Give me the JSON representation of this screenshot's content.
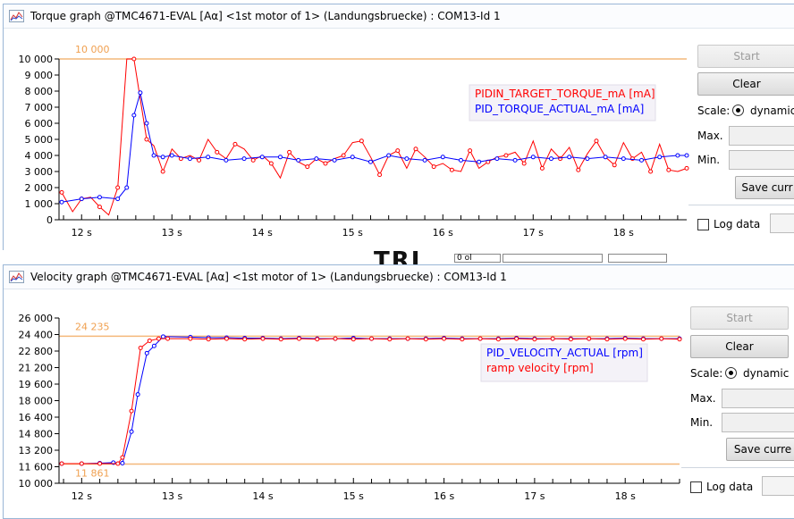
{
  "background": {
    "partial_label": "TRI",
    "partial_field": "0 ol"
  },
  "windows": [
    {
      "id": "torque",
      "title": "Torque graph @TMC4671-EVAL [Aα] <1st motor of 1> (Landungsbruecke) : COM13-Id 1",
      "buttons": {
        "start": "Start",
        "clear": "Clear",
        "save": "Save curr"
      },
      "scale_label": "Scale:",
      "scale_option": "dynamic",
      "max_label": "Max.",
      "min_label": "Min.",
      "log_label": "Log data",
      "chart_data": {
        "type": "line",
        "x_ticks": [
          "12 s",
          "13 s",
          "14 s",
          "15 s",
          "16 s",
          "17 s",
          "18 s"
        ],
        "x_tick_values": [
          12,
          13,
          14,
          15,
          16,
          17,
          18
        ],
        "xlim": [
          11.75,
          18.7
        ],
        "y_ticks": [
          "0",
          "1 000",
          "2 000",
          "3 000",
          "4 000",
          "5 000",
          "6 000",
          "7 000",
          "8 000",
          "9 000",
          "10 000"
        ],
        "ylim": [
          0,
          10000
        ],
        "hlines": [
          {
            "value": 10000,
            "label": "10 000"
          }
        ],
        "legend_position": "top-right",
        "series": [
          {
            "name": "PIDIN_TARGET_TORQUE_mA [mA]",
            "color": "#ff0000",
            "x": [
              11.78,
              11.9,
              12.0,
              12.1,
              12.2,
              12.3,
              12.4,
              12.5,
              12.58,
              12.65,
              12.72,
              12.8,
              12.9,
              13.0,
              13.1,
              13.2,
              13.3,
              13.4,
              13.5,
              13.6,
              13.7,
              13.8,
              13.9,
              14.0,
              14.1,
              14.2,
              14.3,
              14.4,
              14.5,
              14.6,
              14.7,
              14.8,
              14.9,
              15.0,
              15.1,
              15.2,
              15.3,
              15.4,
              15.5,
              15.6,
              15.7,
              15.8,
              15.9,
              16.0,
              16.1,
              16.2,
              16.3,
              16.4,
              16.5,
              16.6,
              16.7,
              16.8,
              16.9,
              17.0,
              17.1,
              17.2,
              17.3,
              17.4,
              17.5,
              17.6,
              17.7,
              17.8,
              17.9,
              18.0,
              18.1,
              18.2,
              18.3,
              18.4,
              18.5,
              18.6,
              18.7
            ],
            "values": [
              1700,
              500,
              1300,
              1400,
              800,
              300,
              2000,
              10000,
              10000,
              7500,
              5000,
              4600,
              3000,
              4400,
              3800,
              4000,
              3700,
              5000,
              4200,
              3800,
              4700,
              4400,
              3700,
              4000,
              3500,
              2600,
              4200,
              3600,
              3300,
              3800,
              3500,
              3800,
              4000,
              4800,
              4900,
              3900,
              2800,
              4000,
              4300,
              3200,
              4400,
              3900,
              3300,
              3500,
              3100,
              3000,
              4300,
              3200,
              3600,
              3900,
              4000,
              4200,
              3500,
              4900,
              3200,
              4400,
              3800,
              4500,
              3100,
              4100,
              4900,
              3900,
              3400,
              4800,
              3800,
              4200,
              3000,
              4700,
              3100,
              3000,
              3200
            ]
          },
          {
            "name": "PID_TORQUE_ACTUAL_mA [mA]",
            "color": "#0000ff",
            "x": [
              11.78,
              12.0,
              12.2,
              12.4,
              12.5,
              12.58,
              12.65,
              12.72,
              12.8,
              12.9,
              13.0,
              13.2,
              13.4,
              13.6,
              13.8,
              14.0,
              14.2,
              14.4,
              14.6,
              14.8,
              15.0,
              15.2,
              15.4,
              15.6,
              15.8,
              16.0,
              16.2,
              16.4,
              16.6,
              16.8,
              17.0,
              17.2,
              17.4,
              17.6,
              17.8,
              18.0,
              18.2,
              18.4,
              18.6,
              18.7
            ],
            "values": [
              1100,
              1300,
              1400,
              1300,
              2000,
              6500,
              7900,
              6000,
              4000,
              3900,
              4000,
              3800,
              3900,
              3700,
              3800,
              3900,
              3900,
              3700,
              3800,
              3700,
              3900,
              3600,
              4000,
              3800,
              3700,
              3900,
              3700,
              3600,
              3800,
              3700,
              3900,
              3800,
              3900,
              3800,
              3900,
              3800,
              3700,
              3900,
              4000,
              4000
            ]
          }
        ]
      }
    },
    {
      "id": "velocity",
      "title": "Velocity graph @TMC4671-EVAL [Aα] <1st motor of 1> (Landungsbruecke) : COM13-Id 1",
      "buttons": {
        "start": "Start",
        "clear": "Clear",
        "save": "Save curre"
      },
      "scale_label": "Scale:",
      "scale_option": "dynamic",
      "max_label": "Max.",
      "min_label": "Min.",
      "log_label": "Log data",
      "chart_data": {
        "type": "line",
        "x_ticks": [
          "12 s",
          "13 s",
          "14 s",
          "15 s",
          "16 s",
          "17 s",
          "18 s"
        ],
        "x_tick_values": [
          12,
          13,
          14,
          15,
          16,
          17,
          18
        ],
        "xlim": [
          11.75,
          18.6
        ],
        "y_ticks": [
          "10 000",
          "11 600",
          "13 200",
          "14 800",
          "16 400",
          "18 000",
          "19 600",
          "21 200",
          "22 800",
          "24 400",
          "26 000"
        ],
        "ylim": [
          10000,
          26000
        ],
        "hlines": [
          {
            "value": 24235,
            "label": "24 235"
          },
          {
            "value": 11861,
            "label": "11 861"
          }
        ],
        "legend_position": "top-right",
        "series": [
          {
            "name": "PID_VELOCITY_ACTUAL [rpm]",
            "color": "#0000ff",
            "x": [
              11.78,
              12.0,
              12.2,
              12.35,
              12.45,
              12.55,
              12.62,
              12.72,
              12.8,
              12.9,
              13.2,
              13.4,
              13.6,
              13.8,
              14.0,
              14.2,
              14.4,
              14.6,
              14.8,
              15.0,
              15.2,
              15.4,
              15.6,
              15.8,
              16.0,
              16.2,
              16.4,
              16.6,
              16.8,
              17.0,
              17.2,
              17.4,
              17.6,
              17.8,
              18.0,
              18.2,
              18.4,
              18.6
            ],
            "values": [
              11900,
              11900,
              11950,
              12000,
              11950,
              15000,
              18600,
              22600,
              23300,
              24200,
              24150,
              24100,
              24100,
              24050,
              24050,
              24000,
              24050,
              24000,
              24000,
              24050,
              24000,
              24000,
              24000,
              24000,
              24050,
              24000,
              24000,
              24000,
              24050,
              24000,
              24000,
              24000,
              24000,
              24000,
              24050,
              24000,
              24000,
              24000
            ]
          },
          {
            "name": "ramp velocity [rpm]",
            "color": "#ff0000",
            "x": [
              11.78,
              12.0,
              12.2,
              12.4,
              12.45,
              12.55,
              12.65,
              12.75,
              12.85,
              12.95,
              13.2,
              13.4,
              13.6,
              13.8,
              14.0,
              14.2,
              14.4,
              14.6,
              14.8,
              15.0,
              15.2,
              15.4,
              15.6,
              15.8,
              16.0,
              16.2,
              16.4,
              16.6,
              16.8,
              17.0,
              17.2,
              17.4,
              17.6,
              17.8,
              18.0,
              18.2,
              18.4,
              18.6
            ],
            "values": [
              11900,
              11900,
              11900,
              11900,
              12500,
              17000,
              23100,
              23800,
              24000,
              24000,
              24000,
              23950,
              24000,
              23950,
              24000,
              23950,
              24000,
              23950,
              24000,
              23950,
              24000,
              23950,
              24000,
              23950,
              24000,
              23950,
              24000,
              23950,
              24000,
              23950,
              24000,
              23950,
              24000,
              23950,
              24000,
              23950,
              24000,
              23950
            ]
          }
        ]
      }
    }
  ]
}
